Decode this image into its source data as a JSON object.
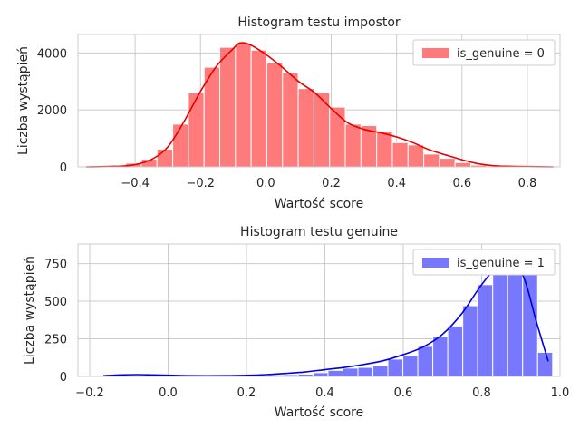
{
  "chart_data": [
    {
      "type": "bar",
      "title": "Histogram testu impostor",
      "xlabel": "Wartość score",
      "ylabel": "Liczba wystąpień",
      "xlim": [
        -0.575,
        0.9
      ],
      "ylim": [
        0,
        4650
      ],
      "xticks": [
        -0.4,
        -0.2,
        0.0,
        0.2,
        0.4,
        0.6,
        0.8
      ],
      "yticks": [
        0,
        2000,
        4000
      ],
      "grid": true,
      "legend": "top-right",
      "colors": {
        "bar": "#ff7b7b",
        "kde": "#e60000"
      },
      "series": [
        {
          "name": "is_genuine = 0",
          "bin_start": -0.525,
          "bin_width": 0.048,
          "values": [
            25,
            60,
            130,
            270,
            620,
            1500,
            2600,
            3500,
            4200,
            4350,
            4100,
            3650,
            3300,
            2750,
            2600,
            2100,
            1500,
            1450,
            1250,
            850,
            770,
            450,
            300,
            150,
            60,
            25,
            20,
            10,
            5,
            2
          ]
        }
      ],
      "kde": {
        "x": [
          -0.55,
          -0.45,
          -0.4,
          -0.35,
          -0.3,
          -0.25,
          -0.2,
          -0.15,
          -0.1,
          -0.08,
          -0.05,
          0.0,
          0.05,
          0.1,
          0.15,
          0.2,
          0.25,
          0.3,
          0.35,
          0.4,
          0.45,
          0.5,
          0.55,
          0.6,
          0.65,
          0.7,
          0.75,
          0.8,
          0.88
        ],
        "y": [
          0,
          20,
          80,
          260,
          700,
          1600,
          2650,
          3550,
          4150,
          4350,
          4300,
          3950,
          3500,
          3000,
          2600,
          2050,
          1550,
          1320,
          1200,
          1050,
          850,
          600,
          420,
          250,
          110,
          40,
          20,
          10,
          0
        ]
      }
    },
    {
      "type": "bar",
      "title": "Histogram testu genuine",
      "xlabel": "Wartość score",
      "ylabel": "Liczba wystąpień",
      "xlim": [
        -0.23,
        1.0
      ],
      "ylim": [
        0,
        880
      ],
      "xticks": [
        -0.2,
        0.0,
        0.2,
        0.4,
        0.6,
        0.8,
        1.0
      ],
      "yticks": [
        0,
        250,
        500,
        750
      ],
      "grid": true,
      "legend": "top-right",
      "colors": {
        "bar": "#7878ff",
        "kde": "#0000dd"
      },
      "series": [
        {
          "name": "is_genuine = 1",
          "bin_start": -0.165,
          "bin_width": 0.0382,
          "values": [
            3,
            5,
            5,
            4,
            3,
            3,
            4,
            6,
            5,
            7,
            8,
            10,
            12,
            15,
            25,
            40,
            55,
            60,
            70,
            115,
            140,
            200,
            265,
            335,
            470,
            610,
            770,
            820,
            690,
            160
          ]
        }
      ],
      "kde": {
        "x": [
          -0.165,
          -0.12,
          -0.08,
          -0.04,
          0.0,
          0.05,
          0.1,
          0.15,
          0.2,
          0.25,
          0.3,
          0.35,
          0.4,
          0.45,
          0.5,
          0.55,
          0.6,
          0.65,
          0.7,
          0.75,
          0.8,
          0.85,
          0.88,
          0.91,
          0.94,
          0.97
        ],
        "y": [
          5,
          10,
          12,
          10,
          8,
          5,
          4,
          5,
          7,
          12,
          20,
          30,
          45,
          60,
          80,
          105,
          145,
          195,
          280,
          420,
          610,
          760,
          780,
          640,
          360,
          100
        ]
      }
    }
  ]
}
